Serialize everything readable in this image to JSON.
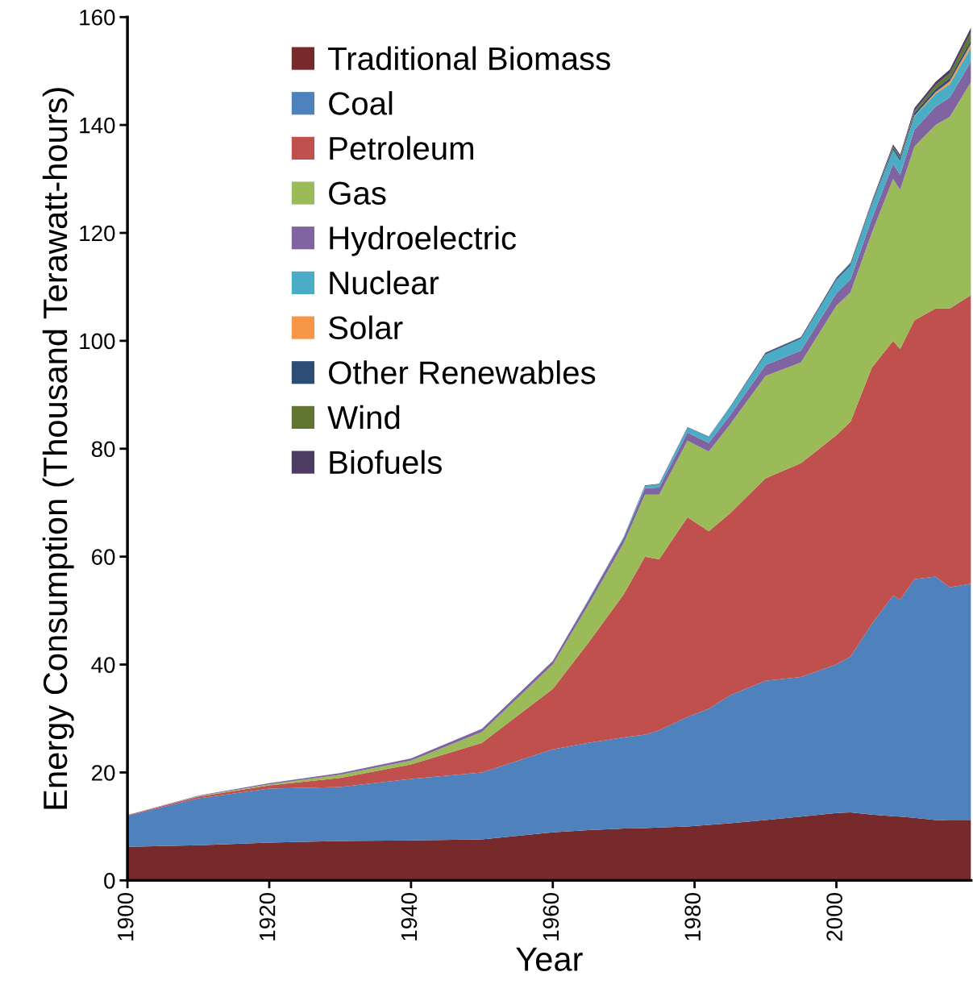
{
  "chart_data": {
    "type": "area",
    "stacked": true,
    "xlabel": "Year",
    "ylabel": "Energy Consumption (Thousand Terawatt-hours)",
    "x": [
      1900,
      1910,
      1920,
      1930,
      1940,
      1950,
      1960,
      1965,
      1970,
      1973,
      1975,
      1979,
      1982,
      1985,
      1990,
      1995,
      2000,
      2002,
      2005,
      2008,
      2009,
      2011,
      2014,
      2016,
      2019
    ],
    "series": [
      {
        "name": "Traditional Biomass",
        "color": "#772a2b",
        "values": [
          6.2,
          6.5,
          7.0,
          7.3,
          7.4,
          7.6,
          8.9,
          9.3,
          9.6,
          9.7,
          9.8,
          10.0,
          10.3,
          10.6,
          11.2,
          11.8,
          12.5,
          12.6,
          12.2,
          11.9,
          11.8,
          11.6,
          11.2,
          11.1,
          11.1
        ]
      },
      {
        "name": "Coal",
        "color": "#4f81bd",
        "values": [
          5.8,
          8.7,
          10.0,
          10.0,
          11.4,
          12.4,
          15.4,
          16.2,
          16.9,
          17.3,
          18.0,
          20.3,
          21.5,
          23.7,
          25.8,
          25.9,
          27.5,
          28.9,
          35.3,
          40.9,
          40.2,
          44.2,
          45.1,
          43.2,
          43.9
        ]
      },
      {
        "name": "Petroleum",
        "color": "#c0504d",
        "values": [
          0.1,
          0.3,
          0.6,
          1.7,
          2.7,
          5.5,
          11.2,
          18.5,
          26.5,
          33.0,
          31.7,
          37.0,
          32.9,
          33.7,
          37.5,
          39.6,
          42.5,
          43.5,
          47.5,
          47.2,
          46.5,
          48.0,
          49.7,
          51.7,
          53.5
        ]
      },
      {
        "name": "Gas",
        "color": "#9bbb59",
        "values": [
          0.0,
          0.1,
          0.2,
          0.6,
          0.7,
          2.0,
          4.5,
          7.0,
          9.5,
          11.5,
          12.0,
          14.2,
          14.8,
          16.5,
          19.0,
          18.7,
          24.0,
          24.0,
          25.0,
          30.0,
          29.5,
          32.2,
          34.0,
          35.5,
          39.5
        ]
      },
      {
        "name": "Hydroelectric",
        "color": "#8064a2",
        "values": [
          0.0,
          0.1,
          0.2,
          0.3,
          0.4,
          0.6,
          0.7,
          0.9,
          1.0,
          1.2,
          1.3,
          1.5,
          1.6,
          1.7,
          2.0,
          2.2,
          2.3,
          2.4,
          2.6,
          2.8,
          2.8,
          3.1,
          3.4,
          3.6,
          3.8
        ]
      },
      {
        "name": "Nuclear",
        "color": "#4bacc6",
        "values": [
          0,
          0,
          0,
          0,
          0,
          0,
          0,
          0.1,
          0.2,
          0.4,
          0.6,
          0.9,
          1.1,
          1.5,
          2.0,
          2.2,
          2.5,
          2.6,
          2.7,
          2.6,
          2.6,
          2.5,
          2.4,
          2.5,
          2.6
        ]
      },
      {
        "name": "Solar",
        "color": "#f79646",
        "values": [
          0,
          0,
          0,
          0,
          0,
          0,
          0,
          0,
          0,
          0,
          0,
          0,
          0,
          0,
          0,
          0,
          0,
          0,
          0,
          0,
          0,
          0.1,
          0.3,
          0.5,
          0.7
        ]
      },
      {
        "name": "Other Renewables",
        "color": "#2c4d75",
        "values": [
          0,
          0,
          0,
          0,
          0,
          0,
          0,
          0,
          0,
          0.1,
          0.1,
          0.1,
          0.1,
          0.1,
          0.2,
          0.2,
          0.3,
          0.3,
          0.3,
          0.4,
          0.4,
          0.5,
          0.6,
          0.6,
          0.7
        ]
      },
      {
        "name": "Wind",
        "color": "#5f7530",
        "values": [
          0,
          0,
          0,
          0,
          0,
          0,
          0,
          0,
          0,
          0,
          0,
          0,
          0,
          0,
          0,
          0,
          0,
          0.1,
          0.1,
          0.2,
          0.3,
          0.4,
          0.7,
          0.9,
          1.4
        ]
      },
      {
        "name": "Biofuels",
        "color": "#4d3b62",
        "values": [
          0,
          0,
          0,
          0,
          0,
          0,
          0,
          0,
          0,
          0,
          0,
          0,
          0,
          0,
          0.1,
          0.1,
          0.1,
          0.1,
          0.2,
          0.4,
          0.4,
          0.5,
          0.6,
          0.7,
          0.9
        ]
      }
    ],
    "xlim": [
      1900,
      2019
    ],
    "xticks": [
      1900,
      1920,
      1940,
      1960,
      1980,
      2000
    ],
    "ylim": [
      0,
      160
    ],
    "yticks": [
      0,
      20,
      40,
      60,
      80,
      100,
      120,
      140,
      160
    ],
    "grid": false,
    "legend": "top left"
  }
}
